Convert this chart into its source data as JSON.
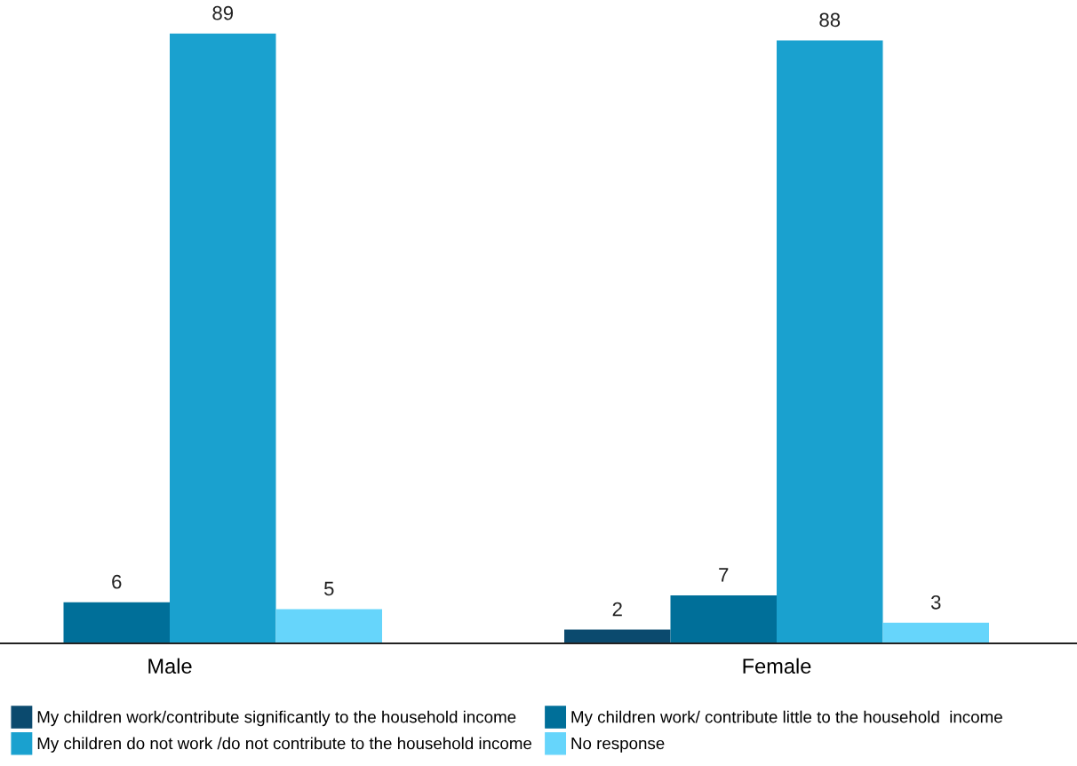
{
  "chart_data": {
    "type": "bar",
    "categories": [
      "Male",
      "Female"
    ],
    "series": [
      {
        "name": "My children work/contribute significantly to the household income",
        "color": "#0b4a6e",
        "values": [
          null,
          2
        ]
      },
      {
        "name": "My children work/ contribute little to the household  income",
        "color": "#006f99",
        "values": [
          6,
          7
        ]
      },
      {
        "name": "My children do not work /do not contribute to the household income",
        "color": "#1aa1cf",
        "values": [
          89,
          88
        ]
      },
      {
        "name": "No response",
        "color": "#66d5fb",
        "values": [
          5,
          3
        ]
      }
    ],
    "tick_labels": "x",
    "data_labels": true,
    "grid": false,
    "legend": "bottom"
  }
}
